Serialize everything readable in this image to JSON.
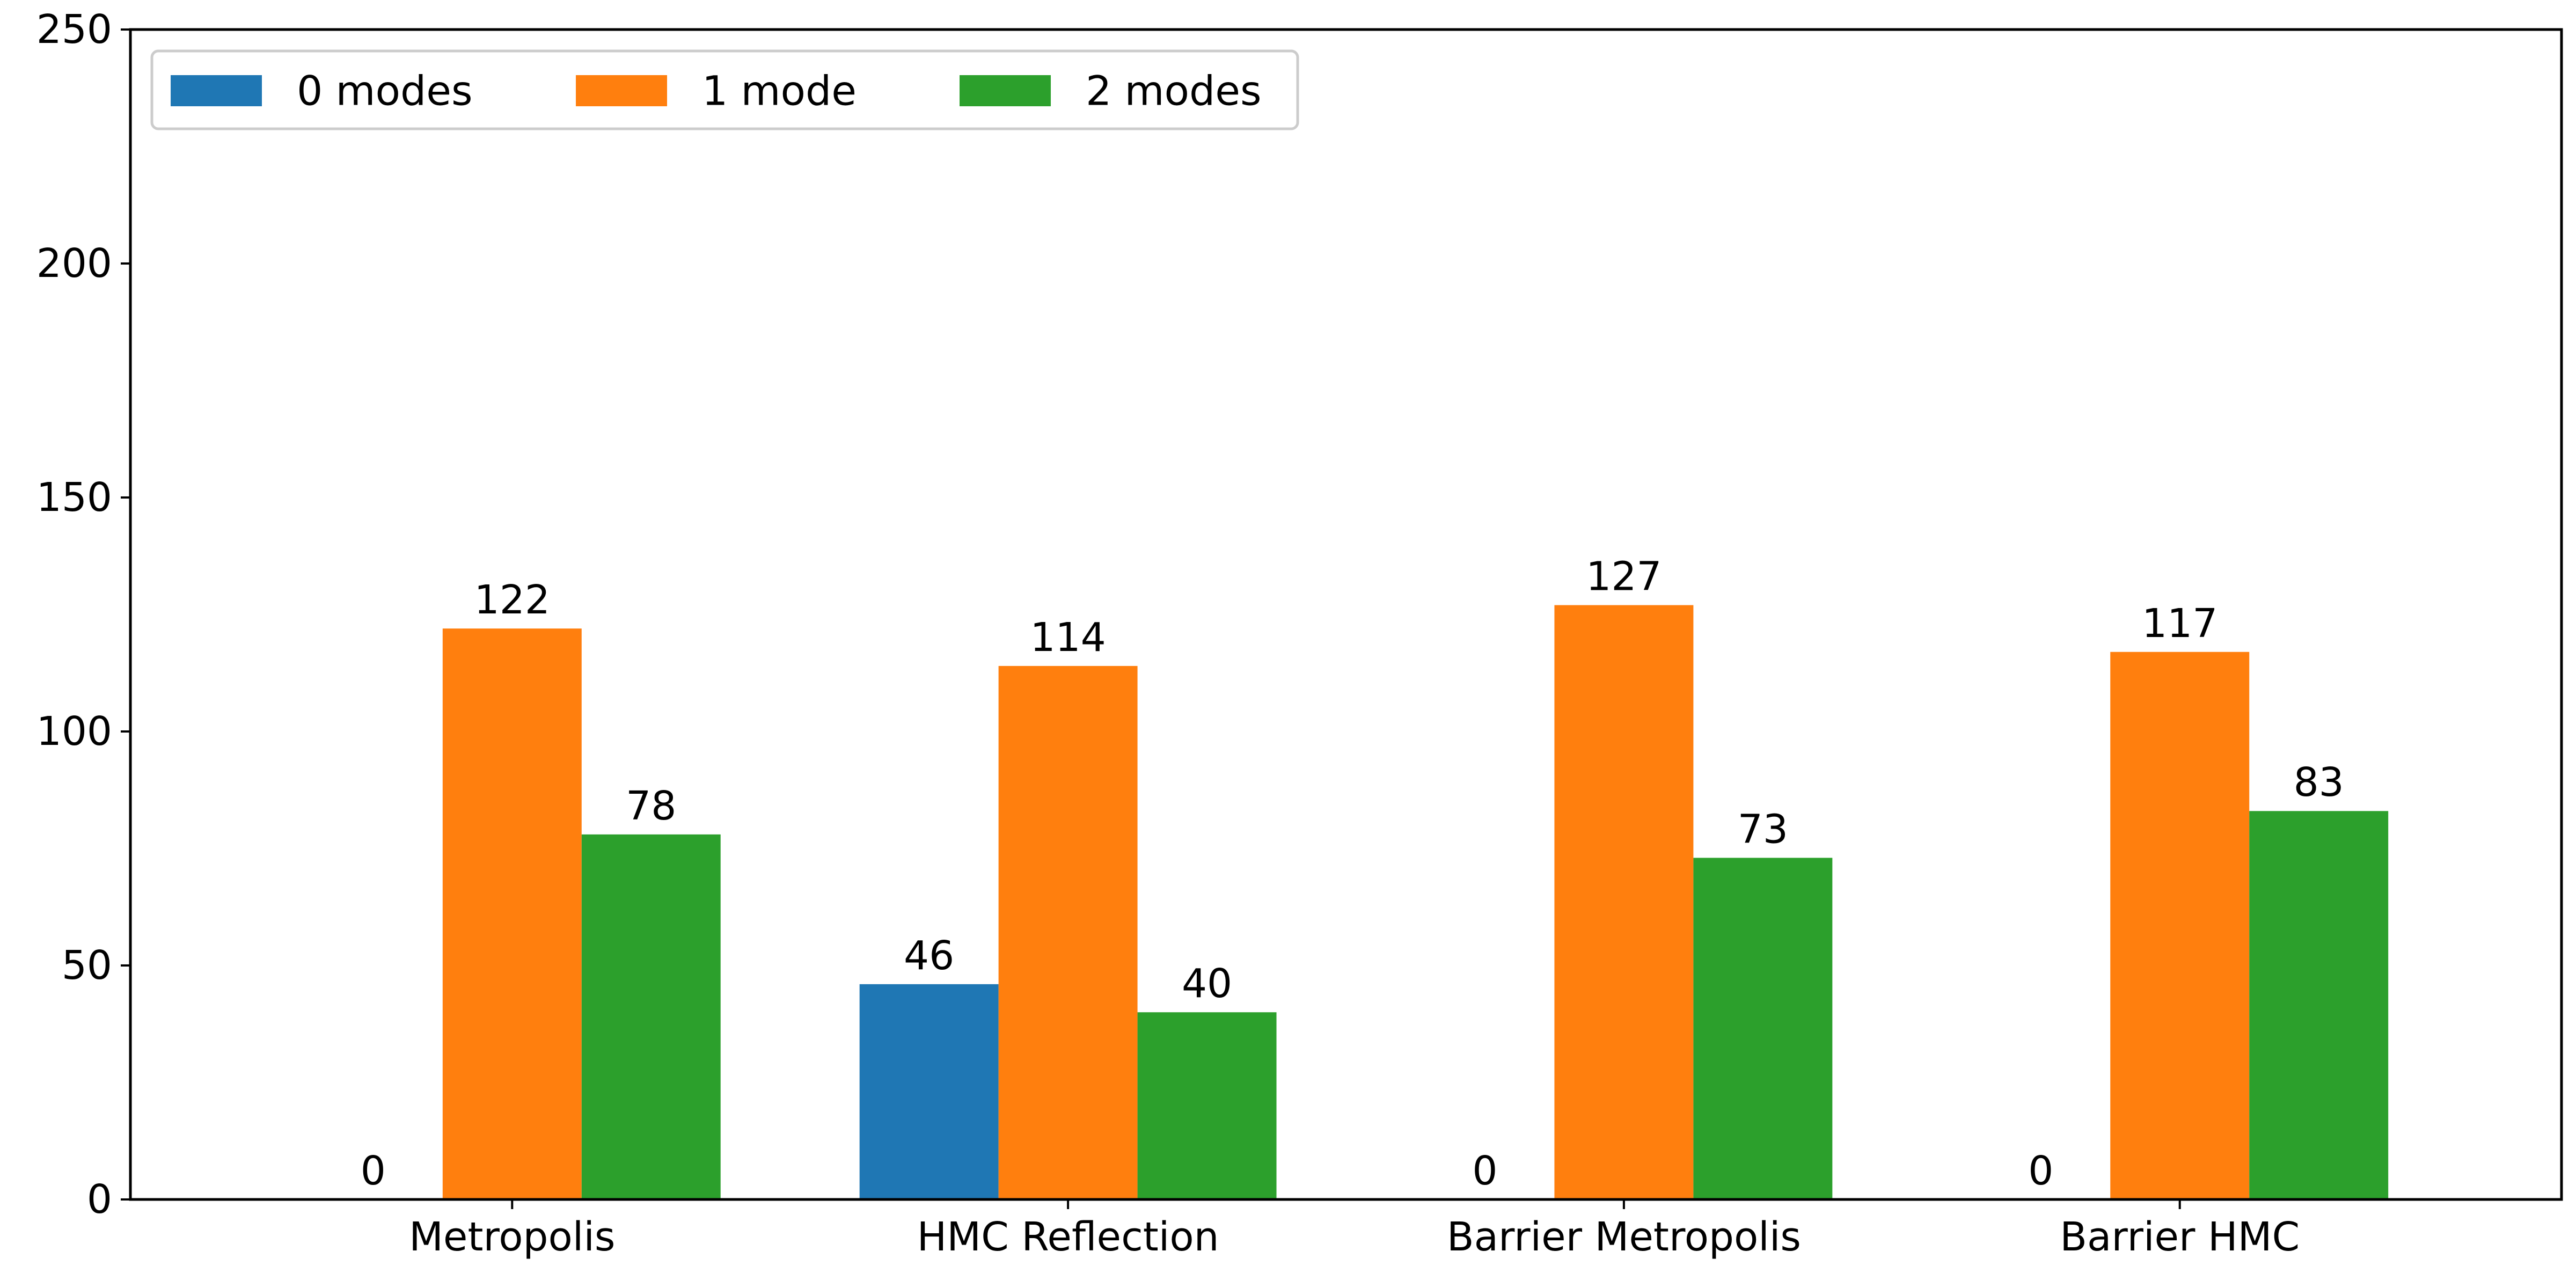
{
  "chart_data": {
    "type": "bar",
    "title": "",
    "xlabel": "",
    "ylabel": "",
    "categories": [
      "Metropolis",
      "HMC Reflection",
      "Barrier Metropolis",
      "Barrier HMC"
    ],
    "series": [
      {
        "name": "0 modes",
        "color": "#1f77b4",
        "values": [
          0,
          46,
          0,
          0
        ]
      },
      {
        "name": "1 mode",
        "color": "#ff7f0e",
        "values": [
          122,
          114,
          127,
          117
        ]
      },
      {
        "name": "2 modes",
        "color": "#2ca02c",
        "values": [
          78,
          40,
          73,
          83
        ]
      }
    ],
    "ylim": [
      0,
      250
    ],
    "yticks": [
      0,
      50,
      100,
      150,
      200,
      250
    ],
    "grid": false,
    "legend_position": "top-left"
  }
}
